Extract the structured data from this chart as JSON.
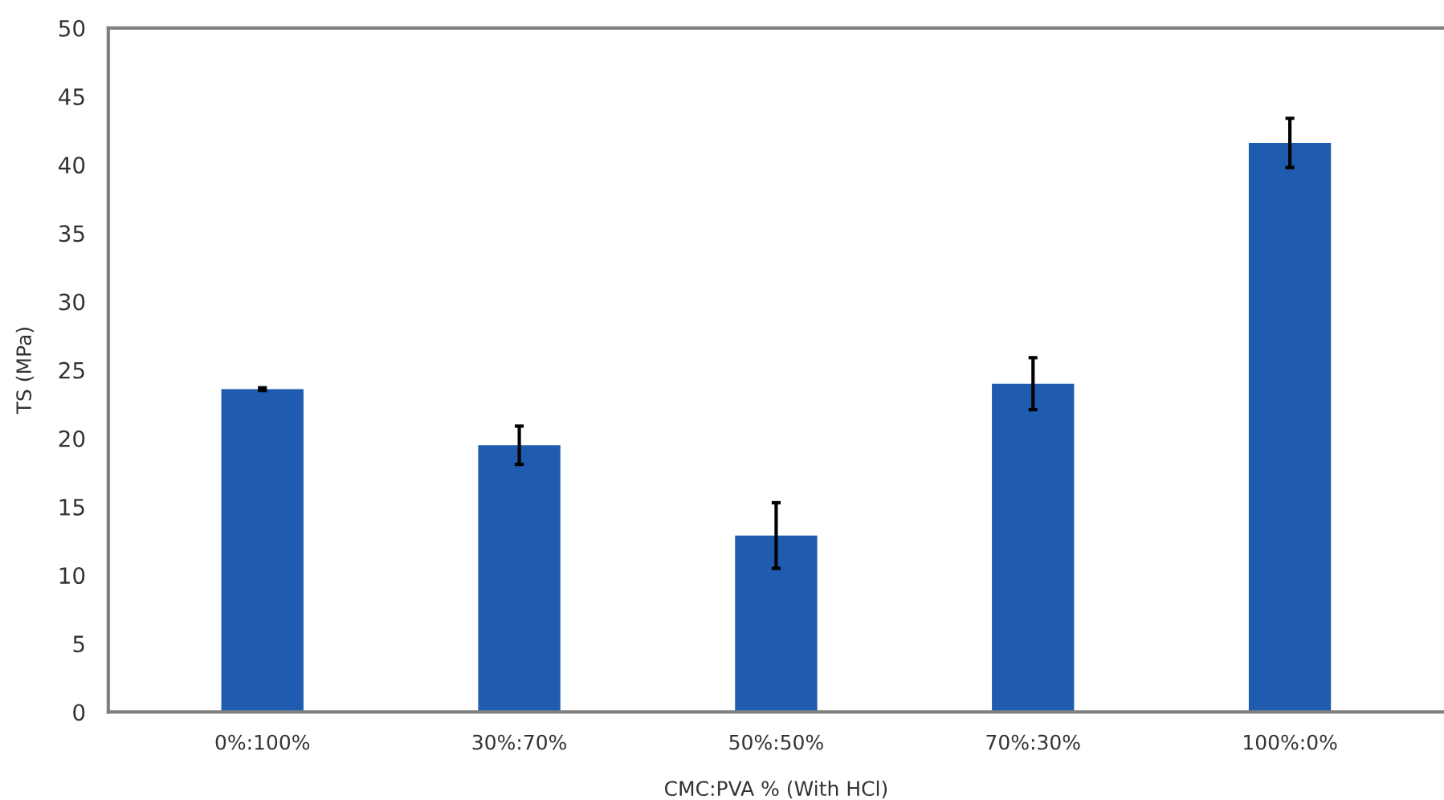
{
  "chart_data": {
    "type": "bar",
    "xlabel": "CMC:PVA % (With HCl)",
    "ylabel": "TS (MPa)",
    "categories": [
      "0%:100%",
      "30%:70%",
      "50%:50%",
      "70%:30%",
      "100%:0%"
    ],
    "values": [
      23.6,
      19.5,
      12.9,
      24.0,
      41.6
    ],
    "errors": [
      0.1,
      1.4,
      2.4,
      1.9,
      1.8
    ],
    "color": "#1f5cb0",
    "ylim": [
      0,
      50
    ],
    "yticks": [
      0,
      5,
      10,
      15,
      20,
      25,
      30,
      35,
      40,
      45,
      50
    ],
    "grid": false,
    "legend": false
  }
}
